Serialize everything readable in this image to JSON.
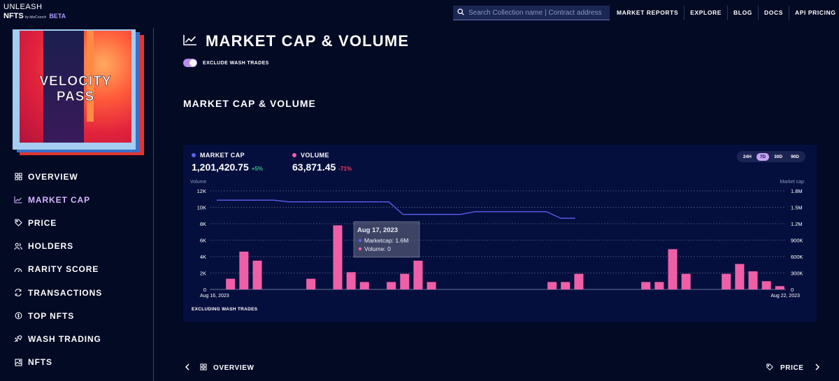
{
  "brand": {
    "line1": "UNLEASH",
    "line2": "NFTS",
    "by": "by bitsCrunch",
    "badge": "BETA"
  },
  "search": {
    "placeholder": "Search Collection name | Contract address"
  },
  "topnav": [
    "MARKET REPORTS",
    "EXPLORE",
    "BLOG",
    "DOCS",
    "API PRICING"
  ],
  "collection": {
    "art_text_1": "VELOCITY",
    "art_text_2": "PASS"
  },
  "sidebar": {
    "items": [
      {
        "label": "OVERVIEW",
        "icon": "grid-icon"
      },
      {
        "label": "MARKET CAP",
        "icon": "trend-chart-icon",
        "active": true
      },
      {
        "label": "PRICE",
        "icon": "tag-icon"
      },
      {
        "label": "HOLDERS",
        "icon": "users-icon"
      },
      {
        "label": "RARITY SCORE",
        "icon": "gauge-icon"
      },
      {
        "label": "TRANSACTIONS",
        "icon": "exchange-icon"
      },
      {
        "label": "TOP NFTS",
        "icon": "coin-icon"
      },
      {
        "label": "WASH TRADING",
        "icon": "wash-icon"
      },
      {
        "label": "NFTS",
        "icon": "image-icon"
      }
    ]
  },
  "page": {
    "title": "MARKET CAP & VOLUME",
    "toggle_label": "EXCLUDE WASH TRADES",
    "toggle_on": true,
    "section_title": "MARKET CAP & VOLUME"
  },
  "metrics": {
    "market_cap": {
      "label": "MARKET CAP",
      "value": "1,201,420.75",
      "change": "+5%",
      "color": "#5b5ff0",
      "change_color": "#2ec27e"
    },
    "volume": {
      "label": "VOLUME",
      "value": "63,871.45",
      "change": "-71%",
      "color": "#ef5fa7",
      "change_color": "#ff3b5c"
    }
  },
  "ranges": {
    "options": [
      "24H",
      "7D",
      "30D",
      "90D"
    ],
    "selected": "7D"
  },
  "chart_data": {
    "type": "bar",
    "left_axis_label": "Volume",
    "right_axis_label": "Market cap",
    "left_ticks": [
      "12K",
      "10K",
      "8K",
      "6K",
      "4K",
      "2K",
      "0"
    ],
    "right_ticks": [
      "1.8M",
      "1.5M",
      "1.2M",
      "900K",
      "600K",
      "300K",
      "0"
    ],
    "ylim_left": [
      0,
      12000
    ],
    "ylim_right": [
      0,
      1800000
    ],
    "x_start_label": "Aug 16, 2023",
    "x_end_label": "Aug 22, 2023",
    "grid": true,
    "series": [
      {
        "name": "Volume",
        "type": "bar",
        "color": "#ef5fa7",
        "values": [
          0,
          1300,
          4600,
          3500,
          0,
          0,
          0,
          1300,
          0,
          7800,
          2100,
          900,
          0,
          900,
          1900,
          3500,
          900,
          0,
          0,
          0,
          0,
          0,
          0,
          0,
          0,
          900,
          900,
          1900,
          0,
          0,
          0,
          0,
          900,
          900,
          4900,
          1900,
          0,
          0,
          1900,
          3100,
          2200,
          1000,
          400
        ]
      },
      {
        "name": "Market cap",
        "type": "line",
        "color": "#5b5ff0",
        "values": [
          1630000,
          1630000,
          1630000,
          1630000,
          1630000,
          1600000,
          1600000,
          1600000,
          1600000,
          1600000,
          1600000,
          1600000,
          1600000,
          1370000,
          1370000,
          1370000,
          1370000,
          1370000,
          1420000,
          1420000,
          1420000,
          1420000,
          1420000,
          1420000,
          1300000,
          1300000
        ]
      }
    ],
    "tooltip": {
      "title": "Aug 17, 2023",
      "line1": "Marketcap: 1.6M",
      "line2": "Volume: 0"
    }
  },
  "card_footer": "EXCLUDING WASH TRADES",
  "bottom_nav": {
    "prev": "OVERVIEW",
    "next": "PRICE"
  }
}
